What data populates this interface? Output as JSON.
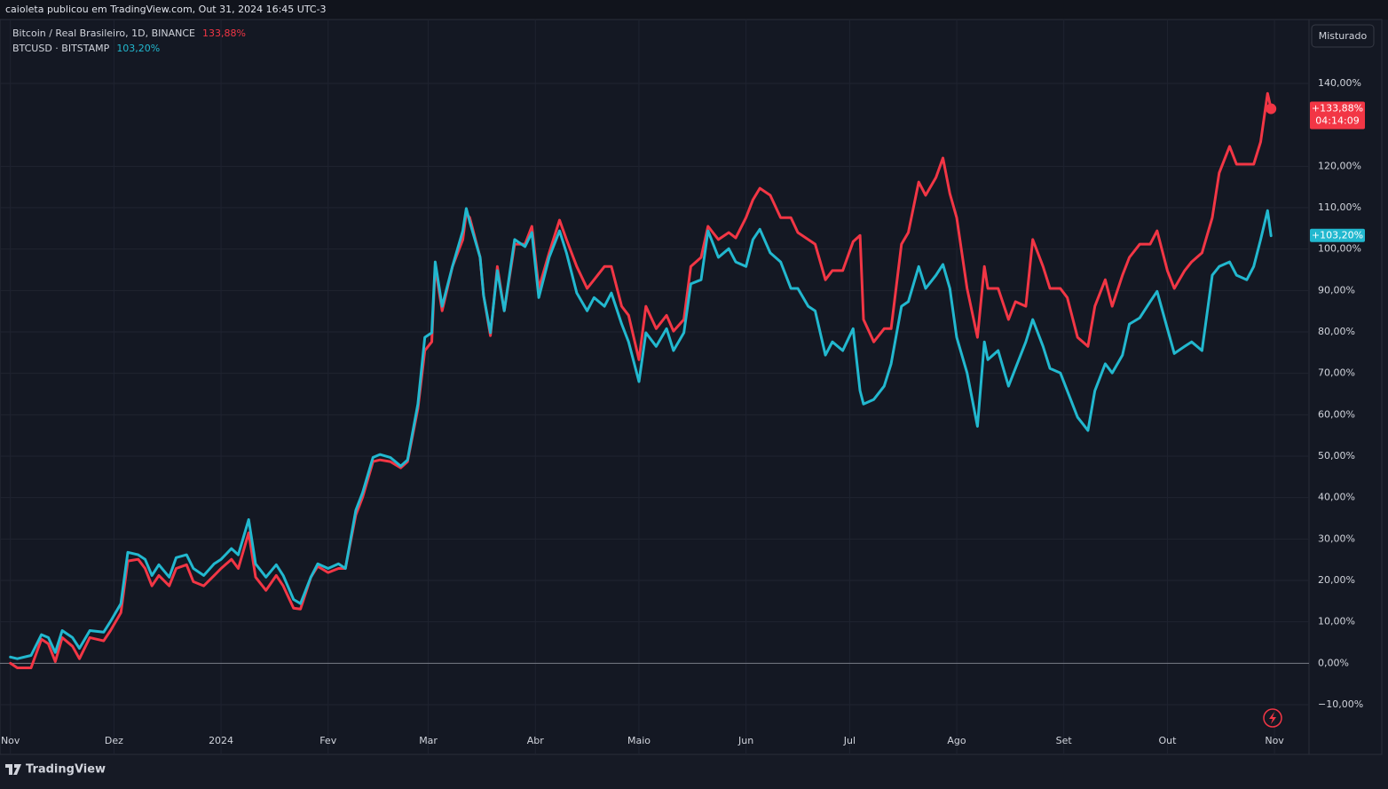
{
  "header": "caioleta publicou em TradingView.com, Out 31, 2024 16:45 UTC-3",
  "footer": "TradingView",
  "button": "Misturado",
  "chart_data": {
    "type": "line",
    "x": [
      0,
      2,
      6,
      9,
      11,
      13,
      15,
      18,
      20,
      23,
      27,
      29,
      32,
      34,
      37,
      39,
      41,
      43,
      46,
      48,
      51,
      53,
      56,
      59,
      61,
      64,
      66,
      69,
      71,
      74,
      77,
      79,
      82,
      84,
      87,
      89,
      92,
      95,
      97,
      100,
      102,
      105,
      107,
      110,
      113,
      115,
      118,
      120,
      122,
      123,
      125,
      128,
      131,
      132,
      133,
      136,
      137,
      139,
      141,
      143,
      146,
      149,
      151,
      153,
      156,
      159,
      161,
      164,
      167,
      169,
      172,
      174,
      177,
      179,
      182,
      184,
      187,
      190,
      192,
      195,
      197,
      200,
      202,
      205,
      208,
      210,
      213,
      215,
      217,
      220,
      223,
      226,
      228,
      231,
      233,
      236,
      238,
      241,
      244,
      246,
      247,
      250,
      253,
      255,
      258,
      260,
      263,
      265,
      268,
      270,
      272,
      274,
      277,
      280,
      282,
      283,
      286,
      289,
      291,
      294,
      296,
      299,
      301,
      304,
      306,
      309,
      312,
      314,
      317,
      319,
      322,
      324,
      327,
      330,
      332,
      335,
      337,
      340,
      342,
      345,
      348,
      350,
      353,
      355,
      358,
      360,
      362,
      364,
      365
    ],
    "xlim": [
      -3,
      376
    ],
    "xticks": [
      {
        "value": 0,
        "label": "Nov"
      },
      {
        "value": 30,
        "label": "Dez"
      },
      {
        "value": 61,
        "label": "2024"
      },
      {
        "value": 92,
        "label": "Fev"
      },
      {
        "value": 121,
        "label": "Mar"
      },
      {
        "value": 152,
        "label": "Abr"
      },
      {
        "value": 182,
        "label": "Maio"
      },
      {
        "value": 213,
        "label": "Jun"
      },
      {
        "value": 243,
        "label": "Jul"
      },
      {
        "value": 274,
        "label": "Ago"
      },
      {
        "value": 305,
        "label": "Set"
      },
      {
        "value": 335,
        "label": "Out"
      },
      {
        "value": 366,
        "label": "Nov"
      }
    ],
    "ylim": [
      -16,
      155
    ],
    "yticks": [
      {
        "value": -10,
        "label": "−10,00%"
      },
      {
        "value": 0,
        "label": "0,00%"
      },
      {
        "value": 10,
        "label": "10,00%"
      },
      {
        "value": 20,
        "label": "20,00%"
      },
      {
        "value": 30,
        "label": "30,00%"
      },
      {
        "value": 40,
        "label": "40,00%"
      },
      {
        "value": 50,
        "label": "50,00%"
      },
      {
        "value": 60,
        "label": "60,00%"
      },
      {
        "value": 70,
        "label": "70,00%"
      },
      {
        "value": 80,
        "label": "80,00%"
      },
      {
        "value": 90,
        "label": "90,00%"
      },
      {
        "value": 100,
        "label": "100,00%"
      },
      {
        "value": 110,
        "label": "110,00%"
      },
      {
        "value": 120,
        "label": "120,00%"
      },
      {
        "value": 140,
        "label": "140,00%"
      }
    ],
    "grid": true,
    "series": [
      {
        "name": "Bitcoin / Real Brasileiro, 1D, BINANCE",
        "color": "#f23645",
        "legend_value": "133,88%",
        "last_label": "+133,88%",
        "countdown": "04:14:09",
        "values": [
          0,
          -1.1,
          -1.1,
          5.8,
          4.7,
          0.4,
          6.2,
          4.1,
          1.1,
          6.2,
          5.4,
          7.9,
          12.2,
          24.7,
          25.1,
          22.9,
          18.7,
          21.2,
          18.7,
          22.9,
          23.8,
          19.7,
          18.7,
          21.2,
          22.9,
          25.1,
          22.9,
          31.5,
          20.8,
          17.6,
          21.2,
          18.7,
          13.3,
          13.1,
          20.8,
          23.4,
          21.9,
          22.9,
          22.9,
          35.8,
          40.1,
          48.7,
          49.1,
          48.7,
          47.2,
          48.7,
          61.5,
          75.5,
          77.6,
          95.8,
          85.1,
          95.8,
          102.3,
          108.7,
          107.6,
          98.0,
          88.8,
          79.1,
          95.8,
          85.1,
          101.2,
          101.2,
          105.5,
          90.5,
          99.1,
          107.0,
          102.3,
          95.8,
          90.5,
          92.6,
          95.8,
          95.8,
          86.2,
          84.0,
          73.3,
          86.2,
          80.8,
          84.0,
          80.2,
          83.0,
          95.8,
          98.0,
          105.5,
          102.3,
          104.0,
          102.7,
          107.6,
          111.9,
          114.7,
          113.0,
          107.6,
          107.6,
          104.0,
          102.3,
          101.2,
          92.6,
          94.8,
          94.8,
          101.8,
          103.3,
          83.0,
          77.6,
          80.8,
          80.8,
          101.2,
          104.0,
          116.2,
          113.0,
          117.3,
          122.0,
          113.4,
          107.6,
          90.5,
          78.7,
          95.8,
          90.5,
          90.5,
          83.0,
          87.3,
          86.2,
          102.3,
          95.8,
          90.5,
          90.5,
          88.3,
          78.7,
          76.5,
          86.2,
          92.6,
          86.2,
          93.7,
          98.0,
          101.2,
          101.2,
          104.4,
          94.8,
          90.5,
          94.8,
          96.9,
          99.1,
          107.6,
          118.4,
          124.8,
          120.5,
          120.5,
          120.5,
          125.9,
          137.6,
          133.88
        ]
      },
      {
        "name": "BTCUSD · BITSTAMP",
        "color": "#22b8cf",
        "legend_value": "103,20%",
        "last_label": "+103,20%",
        "values": [
          1.5,
          1.1,
          1.9,
          6.9,
          6.2,
          2.6,
          7.9,
          6.2,
          3.6,
          7.9,
          7.5,
          10.1,
          14.4,
          26.8,
          26.2,
          25.1,
          21.2,
          23.8,
          20.8,
          25.5,
          26.2,
          22.9,
          21.2,
          24.0,
          25.1,
          27.7,
          26.2,
          34.7,
          24.0,
          20.8,
          23.8,
          21.2,
          15.4,
          14.4,
          20.8,
          24.0,
          22.9,
          24.0,
          22.9,
          36.9,
          41.2,
          49.7,
          50.4,
          49.7,
          47.6,
          49.1,
          62.6,
          78.7,
          79.8,
          96.9,
          86.2,
          95.8,
          104.4,
          109.8,
          106.6,
          98.0,
          88.8,
          79.8,
          94.8,
          85.1,
          102.3,
          100.6,
          104.0,
          88.3,
          98.0,
          104.4,
          99.1,
          89.4,
          85.1,
          88.3,
          86.2,
          89.4,
          81.9,
          77.6,
          68.0,
          79.8,
          76.5,
          80.8,
          75.5,
          79.8,
          91.6,
          92.6,
          104.4,
          98.0,
          100.1,
          96.9,
          95.8,
          102.3,
          104.8,
          99.1,
          96.9,
          90.5,
          90.5,
          86.2,
          85.1,
          74.4,
          77.6,
          75.5,
          80.8,
          65.8,
          62.6,
          63.7,
          66.9,
          72.3,
          86.2,
          87.3,
          95.8,
          90.5,
          93.7,
          96.3,
          90.5,
          78.7,
          70.1,
          57.2,
          77.6,
          73.3,
          75.5,
          66.9,
          71.2,
          77.6,
          83.0,
          76.5,
          71.2,
          70.1,
          65.8,
          59.4,
          56.2,
          65.8,
          72.3,
          70.1,
          74.4,
          81.9,
          83.4,
          87.3,
          89.8,
          80.8,
          74.8,
          76.5,
          77.6,
          75.5,
          93.7,
          95.8,
          96.9,
          93.7,
          92.6,
          95.8,
          102.3,
          109.3,
          103.2
        ]
      }
    ]
  }
}
